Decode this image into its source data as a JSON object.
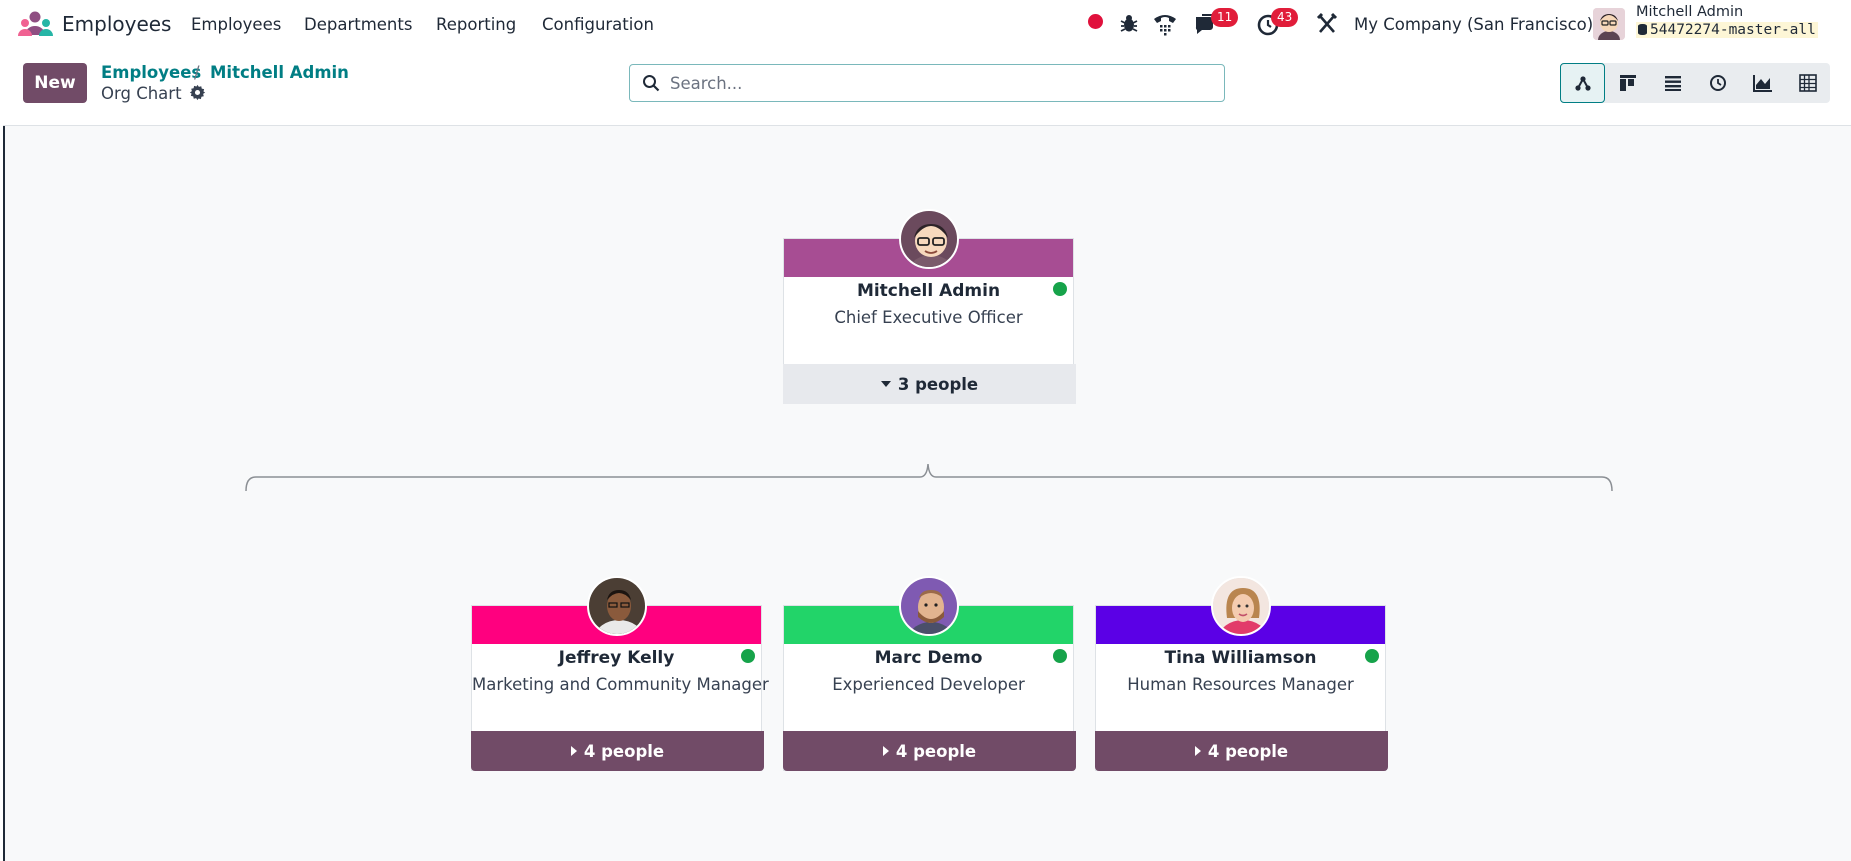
{
  "navbar": {
    "app_name": "Employees",
    "menu": [
      "Employees",
      "Departments",
      "Reporting",
      "Configuration"
    ],
    "messages_count": "11",
    "activities_count": "43",
    "company": "My Company (San Francisco)",
    "user_name": "Mitchell Admin",
    "database": "54472274-master-all"
  },
  "control": {
    "new_label": "New",
    "breadcrumb": [
      "Employees",
      "Mitchell Admin"
    ],
    "view_title": "Org Chart",
    "search_placeholder": "Search..."
  },
  "org_chart": {
    "root": {
      "name": "Mitchell Admin",
      "job": "Chief Executive Officer",
      "band_color": "#a74d93",
      "subordinates": "3 people"
    },
    "children": [
      {
        "name": "Jeffrey Kelly",
        "job": "Marketing and Community Manager",
        "band_color": "#ff007f",
        "subordinates": "4 people"
      },
      {
        "name": "Marc Demo",
        "job": "Experienced Developer",
        "band_color": "#22d469",
        "subordinates": "4 people"
      },
      {
        "name": "Tina Williamson",
        "job": "Human Resources Manager",
        "band_color": "#5b00e6",
        "subordinates": "4 people"
      }
    ]
  },
  "colors": {
    "primary": "#714b67",
    "link": "#017e84",
    "online": "#16a34a",
    "badge": "#e11d3a"
  }
}
